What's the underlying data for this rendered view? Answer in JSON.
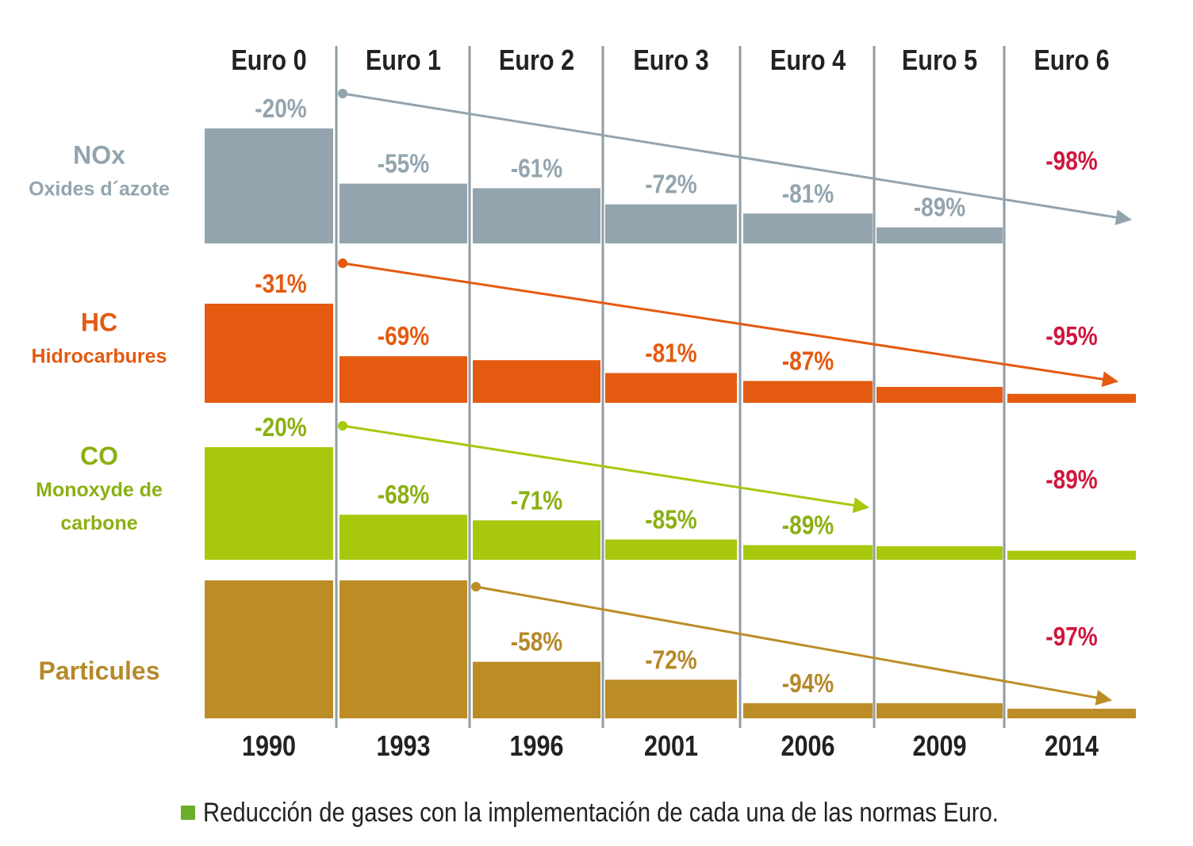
{
  "chart_data": {
    "type": "bar",
    "norms": [
      "Euro 0",
      "Euro 1",
      "Euro 2",
      "Euro 3",
      "Euro 4",
      "Euro 5",
      "Euro 6"
    ],
    "years": [
      "1990",
      "1993",
      "1996",
      "2001",
      "2006",
      "2009",
      "2014"
    ],
    "series": [
      {
        "name": "NOx",
        "subtitle": "Oxides d´azote",
        "color": "#93a4ae",
        "label_color": "#93a4ae",
        "relative_heights": [
          1.0,
          0.52,
          0.48,
          0.34,
          0.26,
          0.14,
          0.0
        ],
        "labels": [
          "-20%",
          "-55%",
          "-61%",
          "-72%",
          "-81%",
          "-89%",
          "-98%"
        ],
        "arrow_from": 1,
        "arrow_to": 6
      },
      {
        "name": "HC",
        "subtitle": "Hidrocarbures",
        "color": "#e45a10",
        "label_color": "#e45a10",
        "relative_heights": [
          1.0,
          0.47,
          0.43,
          0.3,
          0.22,
          0.16,
          0.09
        ],
        "labels": [
          "-31%",
          "-69%",
          "",
          "-81%",
          "-87%",
          "",
          "-95%"
        ],
        "arrow_from": 1,
        "arrow_to": 6
      },
      {
        "name": "CO",
        "subtitle": "Monoxyde de carbone",
        "color": "#a8c80e",
        "label_color": "#8ab012",
        "relative_heights": [
          1.0,
          0.4,
          0.35,
          0.18,
          0.13,
          0.12,
          0.08
        ],
        "labels": [
          "-20%",
          "-68%",
          "-71%",
          "-85%",
          "-89%",
          "",
          "-89%"
        ],
        "arrow_from": 1,
        "arrow_to": 5
      },
      {
        "name": "Particules",
        "subtitle": "",
        "color": "#bc8d27",
        "label_color": "#b5892a",
        "relative_heights": [
          1.0,
          1.0,
          0.41,
          0.28,
          0.11,
          0.11,
          0.07
        ],
        "labels": [
          "",
          "",
          "-58%",
          "-72%",
          "-94%",
          "",
          "-97%"
        ],
        "arrow_from": 2,
        "arrow_to": 6
      }
    ],
    "highlight_color": "#d0163e",
    "legend": "Reducción de gases con la implementación de cada una de las normas Euro.",
    "legend_color": "#6cae2a"
  }
}
